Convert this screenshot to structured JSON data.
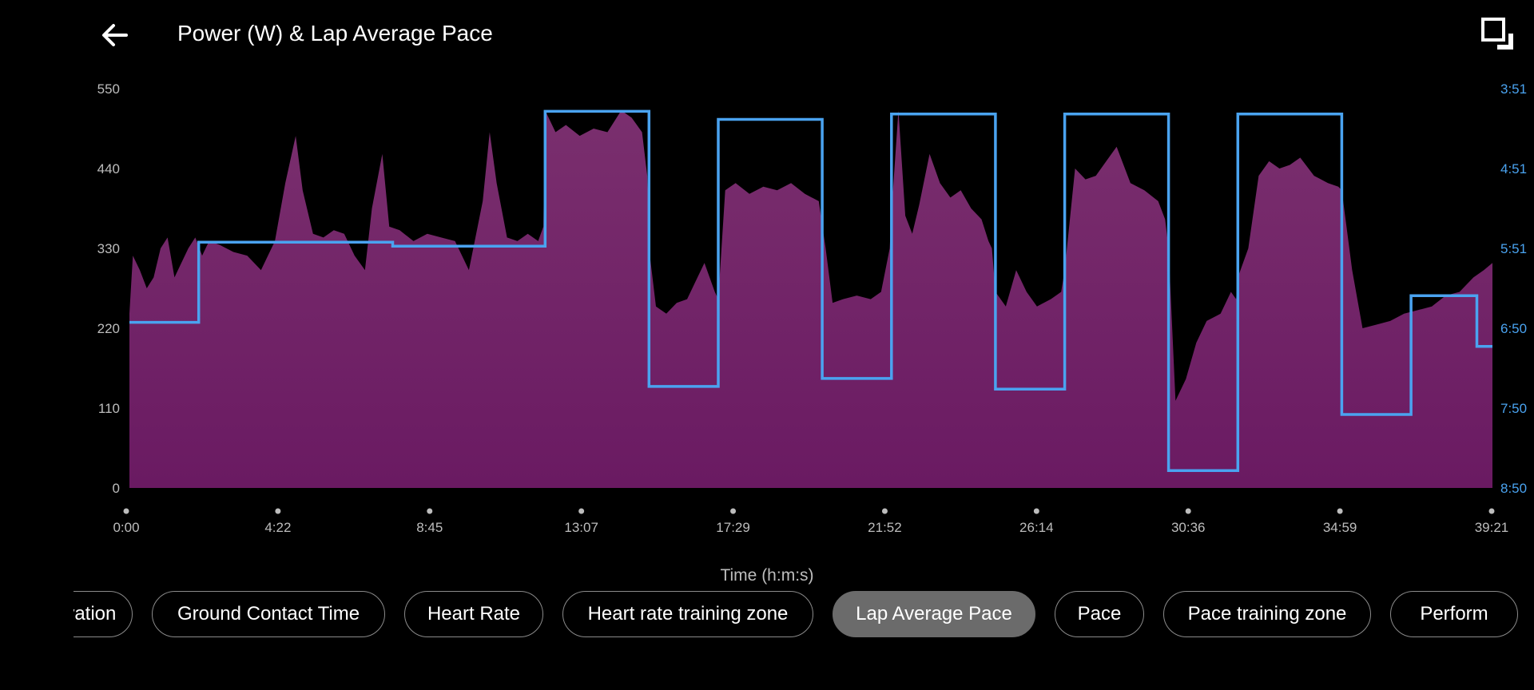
{
  "header": {
    "title": "Power (W) & Lap Average Pace"
  },
  "icons": {
    "back": "arrow-left-icon",
    "expand": "fullscreen-icon"
  },
  "x_axis_title": "Time (h:m:s)",
  "colors": {
    "area_top": "#7a2f6e",
    "area_bottom": "#6a1a62",
    "pace_line": "#4aa3f0",
    "pace_tick": "#4aa3f0",
    "chip_active": "#6b6b6b"
  },
  "chips": [
    {
      "label": "Elevation",
      "active": false
    },
    {
      "label": "Ground Contact Time",
      "active": false
    },
    {
      "label": "Heart Rate",
      "active": false
    },
    {
      "label": "Heart rate training zone",
      "active": false
    },
    {
      "label": "Lap Average Pace",
      "active": true
    },
    {
      "label": "Pace",
      "active": false
    },
    {
      "label": "Pace training zone",
      "active": false
    },
    {
      "label": "Perform",
      "active": false
    }
  ],
  "chart_data": {
    "type": "area",
    "title": "Power (W) & Lap Average Pace",
    "xlabel": "Time (h:m:s)",
    "x_ticks": [
      "0:00",
      "4:22",
      "8:45",
      "13:07",
      "17:29",
      "21:52",
      "26:14",
      "30:36",
      "34:59",
      "39:21"
    ],
    "x_range_min": [
      0,
      39.35
    ],
    "y_left": {
      "label": "Power (W)",
      "ticks": [
        0,
        110,
        220,
        330,
        440,
        550
      ],
      "range": [
        0,
        550
      ]
    },
    "y_right": {
      "label": "Lap Average Pace",
      "ticks": [
        "3:51",
        "4:51",
        "5:51",
        "6:50",
        "7:50",
        "8:50"
      ]
    },
    "grid": false,
    "series": [
      {
        "name": "Power (W)",
        "kind": "area",
        "x_min": [
          0,
          0.1,
          0.3,
          0.5,
          0.7,
          0.9,
          1.1,
          1.3,
          1.5,
          1.7,
          1.9,
          2.1,
          2.3,
          2.6,
          3.0,
          3.4,
          3.8,
          4.2,
          4.5,
          4.8,
          5.0,
          5.3,
          5.6,
          5.9,
          6.2,
          6.5,
          6.8,
          7.0,
          7.3,
          7.5,
          7.8,
          8.2,
          8.6,
          9.0,
          9.4,
          9.8,
          10.2,
          10.4,
          10.6,
          10.9,
          11.2,
          11.5,
          11.8,
          11.95,
          12.0,
          12.3,
          12.6,
          13.0,
          13.4,
          13.8,
          14.2,
          14.5,
          14.8,
          14.95,
          15.0,
          15.2,
          15.5,
          15.8,
          16.1,
          16.4,
          16.6,
          16.9,
          17.0,
          17.2,
          17.5,
          17.9,
          18.3,
          18.7,
          19.1,
          19.5,
          19.9,
          20.1,
          20.3,
          20.6,
          21.0,
          21.4,
          21.7,
          21.95,
          22.0,
          22.2,
          22.4,
          22.6,
          22.8,
          23.1,
          23.4,
          23.7,
          24.0,
          24.3,
          24.6,
          24.8,
          24.9,
          25.0,
          25.3,
          25.6,
          25.9,
          26.2,
          26.6,
          26.9,
          27.0,
          27.3,
          27.6,
          27.9,
          28.2,
          28.5,
          28.9,
          29.3,
          29.7,
          29.9,
          30.0,
          30.2,
          30.5,
          30.8,
          31.1,
          31.5,
          31.8,
          31.95,
          32.0,
          32.3,
          32.6,
          32.9,
          33.2,
          33.5,
          33.8,
          34.2,
          34.6,
          34.9,
          35.0,
          35.3,
          35.6,
          36.0,
          36.4,
          36.8,
          37.2,
          37.6,
          38.0,
          38.4,
          38.8,
          39.1,
          39.35
        ],
        "values": [
          240,
          320,
          300,
          275,
          290,
          330,
          345,
          290,
          310,
          330,
          345,
          320,
          340,
          335,
          325,
          320,
          300,
          340,
          420,
          485,
          410,
          350,
          345,
          355,
          350,
          320,
          300,
          385,
          460,
          360,
          355,
          340,
          350,
          345,
          340,
          300,
          395,
          490,
          420,
          345,
          340,
          350,
          340,
          360,
          520,
          490,
          500,
          485,
          495,
          490,
          520,
          510,
          490,
          430,
          330,
          250,
          240,
          255,
          260,
          290,
          310,
          270,
          260,
          410,
          420,
          405,
          415,
          410,
          420,
          405,
          395,
          330,
          255,
          260,
          265,
          260,
          270,
          330,
          380,
          520,
          375,
          350,
          390,
          460,
          420,
          400,
          410,
          385,
          370,
          340,
          330,
          270,
          250,
          300,
          270,
          250,
          260,
          270,
          300,
          440,
          425,
          430,
          450,
          470,
          420,
          410,
          395,
          370,
          330,
          120,
          150,
          200,
          230,
          240,
          270,
          260,
          290,
          330,
          430,
          450,
          440,
          445,
          455,
          430,
          420,
          415,
          410,
          300,
          220,
          225,
          230,
          240,
          245,
          250,
          265,
          270,
          290,
          300,
          310,
          315
        ]
      },
      {
        "name": "Lap Average Pace",
        "kind": "step",
        "laps_min": [
          [
            0,
            2.0
          ],
          [
            2.0,
            7.6
          ],
          [
            7.6,
            12.0
          ],
          [
            12.0,
            15.0
          ],
          [
            15.0,
            17.0
          ],
          [
            17.0,
            20.0
          ],
          [
            20.0,
            22.0
          ],
          [
            22.0,
            25.0
          ],
          [
            25.0,
            27.0
          ],
          [
            27.0,
            30.0
          ],
          [
            30.0,
            32.0
          ],
          [
            32.0,
            35.0
          ],
          [
            35.0,
            37.0
          ],
          [
            37.0,
            38.9
          ],
          [
            38.9,
            39.35
          ]
        ],
        "values": [
          "6:46",
          "5:46",
          "5:49",
          "4:08",
          "7:34",
          "4:14",
          "7:28",
          "4:10",
          "7:36",
          "4:10",
          "8:37",
          "4:10",
          "7:55",
          "6:26",
          "7:04"
        ]
      }
    ]
  }
}
